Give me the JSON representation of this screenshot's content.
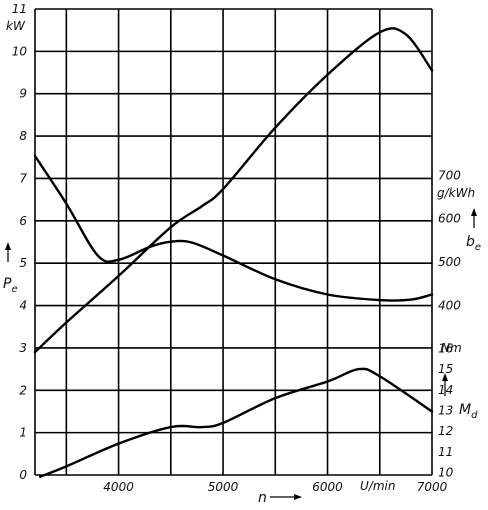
{
  "chart_data": {
    "type": "line",
    "x": {
      "label": "n",
      "unit": "U/min",
      "range": [
        3200,
        7000
      ],
      "ticks": [
        4000,
        5000,
        6000,
        7000
      ],
      "tick_labels": [
        "4000",
        "5000",
        "6000",
        "7000"
      ],
      "grid": [
        3500,
        4000,
        4500,
        5000,
        5500,
        6000,
        6500,
        7000
      ]
    },
    "axes": [
      {
        "id": "Pe",
        "side": "left",
        "label": "P",
        "label_subscript": "e",
        "unit": "kW",
        "range": [
          0,
          11
        ],
        "ticks": [
          0,
          1,
          2,
          3,
          4,
          5,
          6,
          7,
          8,
          9,
          10,
          11
        ],
        "tick_labels": [
          "0",
          "1",
          "2",
          "3",
          "4",
          "5",
          "6",
          "7",
          "8",
          "9",
          "10",
          "11"
        ]
      },
      {
        "id": "be",
        "side": "right",
        "label": "b",
        "label_subscript": "e",
        "unit": "g/kWh",
        "ticks": [
          400,
          500,
          600,
          700
        ],
        "tick_labels": [
          "400",
          "500",
          "600",
          "700"
        ]
      },
      {
        "id": "Md",
        "side": "right",
        "label": "M",
        "label_subscript": "d",
        "unit": "Nm",
        "ticks": [
          10,
          11,
          12,
          13,
          14,
          15,
          16
        ],
        "tick_labels": [
          "10",
          "11",
          "12",
          "13",
          "14",
          "15",
          "16"
        ]
      }
    ],
    "grid": true,
    "series": [
      {
        "axis": "Pe",
        "points": [
          [
            3200,
            2.9
          ],
          [
            3500,
            3.6
          ],
          [
            4000,
            4.7
          ],
          [
            4500,
            5.85
          ],
          [
            4800,
            6.35
          ],
          [
            5000,
            6.75
          ],
          [
            5500,
            8.2
          ],
          [
            6000,
            9.45
          ],
          [
            6500,
            10.45
          ],
          [
            6750,
            10.4
          ],
          [
            7000,
            9.55
          ]
        ]
      },
      {
        "axis": "be",
        "points": [
          [
            3200,
            745
          ],
          [
            3500,
            635
          ],
          [
            3800,
            515
          ],
          [
            4000,
            505
          ],
          [
            4300,
            535
          ],
          [
            4500,
            547
          ],
          [
            4700,
            545
          ],
          [
            5000,
            515
          ],
          [
            5500,
            460
          ],
          [
            6000,
            425
          ],
          [
            6500,
            412
          ],
          [
            6800,
            413
          ],
          [
            7000,
            425
          ]
        ]
      },
      {
        "axis": "Md",
        "points": [
          [
            3250,
            9.8
          ],
          [
            3500,
            10.3
          ],
          [
            4000,
            11.4
          ],
          [
            4500,
            12.2
          ],
          [
            4800,
            12.2
          ],
          [
            5000,
            12.4
          ],
          [
            5500,
            13.6
          ],
          [
            6000,
            14.4
          ],
          [
            6300,
            15.0
          ],
          [
            6500,
            14.65
          ],
          [
            7000,
            12.95
          ]
        ]
      }
    ]
  }
}
